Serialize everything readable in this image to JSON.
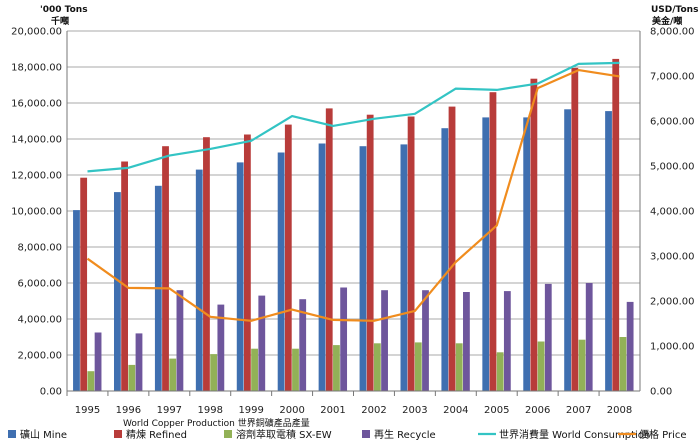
{
  "chart_data": {
    "type": "bar",
    "categories": [
      "1995",
      "1996",
      "1997",
      "1998",
      "1999",
      "2000",
      "2001",
      "2002",
      "2003",
      "2004",
      "2005",
      "2006",
      "2007",
      "2008"
    ],
    "left_axis": {
      "title_line1": "'000 Tons",
      "title_line2": "千噸",
      "ylim": [
        0,
        20000
      ],
      "ticks": [
        "0.00",
        "2,000.00",
        "4,000.00",
        "6,000.00",
        "8,000.00",
        "10,000.00",
        "12,000.00",
        "14,000.00",
        "16,000.00",
        "18,000.00",
        "20,000.00"
      ]
    },
    "right_axis": {
      "title_line1": "USD/Tons",
      "title_line2": "美金/噸",
      "ylim": [
        0,
        8000
      ],
      "ticks": [
        "0.00",
        "1,000.00",
        "2,000.00",
        "3,000.00",
        "4,000.00",
        "5,000.00",
        "6,000.00",
        "7,000.00",
        "8,000.00"
      ]
    },
    "caption": "World Copper Production 世界銅礦產品產量",
    "grid": true,
    "legend_position": "bottom",
    "series": [
      {
        "name": "礦山 Mine",
        "type": "bar",
        "axis": "left",
        "color": "#3f6fb0",
        "values": [
          10050,
          11050,
          11400,
          12300,
          12700,
          13250,
          13750,
          13600,
          13700,
          14600,
          15200,
          15200,
          15650,
          15550
        ]
      },
      {
        "name": "精煉 Refined",
        "type": "bar",
        "axis": "left",
        "color": "#b83c3a",
        "values": [
          11850,
          12750,
          13600,
          14100,
          14250,
          14800,
          15700,
          15350,
          15250,
          15800,
          16600,
          17350,
          17950,
          18450
        ]
      },
      {
        "name": "溶劑萃取電積 SX-EW",
        "type": "bar",
        "axis": "left",
        "color": "#92b157",
        "values": [
          1100,
          1450,
          1800,
          2050,
          2350,
          2350,
          2550,
          2650,
          2700,
          2650,
          2150,
          2750,
          2850,
          3000
        ]
      },
      {
        "name": "再生 Recycle",
        "type": "bar",
        "axis": "left",
        "color": "#6e569c",
        "values": [
          3250,
          3200,
          5600,
          4800,
          5300,
          5100,
          5750,
          5600,
          5600,
          5500,
          5550,
          5950,
          6000,
          4950
        ]
      },
      {
        "name": "世界消費量 World Consumption",
        "type": "line",
        "axis": "right",
        "color": "#33c4c4",
        "values": [
          4880,
          4960,
          5230,
          5380,
          5560,
          6110,
          5890,
          6050,
          6160,
          6720,
          6690,
          6830,
          7270,
          7290
        ]
      },
      {
        "name": "價格 Price",
        "type": "line",
        "axis": "right",
        "color": "#f08c1e",
        "values": [
          2940,
          2290,
          2280,
          1650,
          1560,
          1810,
          1580,
          1560,
          1780,
          2870,
          3680,
          6730,
          7130,
          6990
        ]
      }
    ]
  }
}
